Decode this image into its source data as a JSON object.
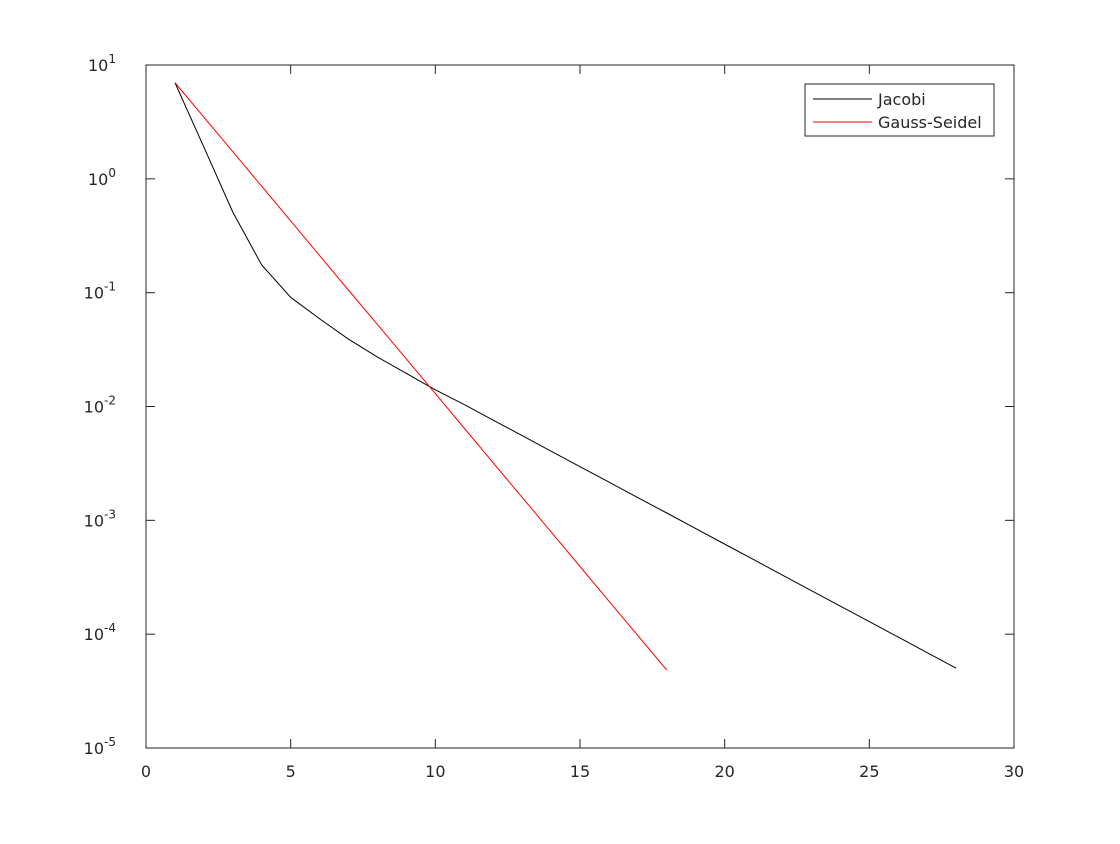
{
  "chart_data": {
    "type": "line",
    "log_y": true,
    "legend": "northeast",
    "xlim": [
      0,
      30
    ],
    "xticks": [
      0,
      5,
      10,
      15,
      20,
      25,
      30
    ],
    "ylim": [
      1e-05,
      10
    ],
    "yticks": [
      {
        "value": 1e-05,
        "label": "10",
        "exponent": "-5"
      },
      {
        "value": 0.0001,
        "label": "10",
        "exponent": "-4"
      },
      {
        "value": 0.001,
        "label": "10",
        "exponent": "-3"
      },
      {
        "value": 0.01,
        "label": "10",
        "exponent": "-2"
      },
      {
        "value": 0.1,
        "label": "10",
        "exponent": "-1"
      },
      {
        "value": 1,
        "label": "10",
        "exponent": "0"
      },
      {
        "value": 10,
        "label": "10",
        "exponent": "1"
      }
    ],
    "series": [
      {
        "name": "Jacobi",
        "color": "#000000",
        "x": [
          1,
          2,
          3,
          4,
          5,
          6,
          7,
          8,
          9,
          10,
          11,
          12,
          13,
          14,
          15,
          16,
          17,
          18,
          19,
          20,
          21,
          22,
          23,
          24,
          25,
          26,
          27,
          28
        ],
        "values": [
          7,
          1.9,
          0.51,
          0.175,
          0.091,
          0.059,
          0.039,
          0.0272,
          0.0195,
          0.014,
          0.0104,
          0.00759,
          0.00555,
          0.00405,
          0.00296,
          0.00217,
          0.00158,
          0.00116,
          0.000846,
          0.000618,
          0.000452,
          0.00033,
          0.000241,
          0.000176,
          0.000129,
          9.42e-05,
          6.88e-05,
          5.02e-05
        ]
      },
      {
        "name": "Gauss-Seidel",
        "color": "#ff0000",
        "x": [
          1,
          2,
          3,
          4,
          5,
          6,
          7,
          8,
          9,
          10,
          11,
          12,
          13,
          14,
          15,
          16,
          17,
          18
        ],
        "values": [
          7,
          3.48,
          1.73,
          0.859,
          0.427,
          0.212,
          0.105,
          0.0525,
          0.0261,
          0.013,
          0.00644,
          0.0032,
          0.00159,
          0.000791,
          0.000393,
          0.000195,
          9.71e-05,
          4.83e-05
        ]
      }
    ]
  }
}
